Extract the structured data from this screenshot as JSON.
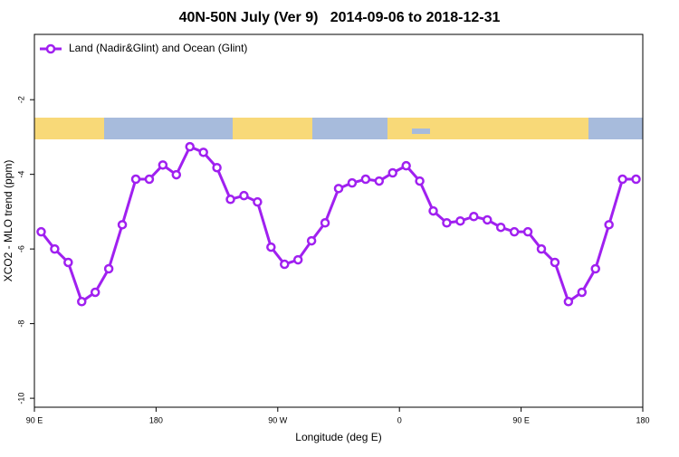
{
  "chart_data": {
    "type": "line",
    "title": "40N-50N July (Ver 9)   2014-09-06 to 2018-12-31",
    "xlabel": "Longitude (deg E)",
    "ylabel": "XCO2 - MLO trend (ppm)",
    "x": [
      95,
      105,
      115,
      125,
      135,
      145,
      155,
      165,
      175,
      185,
      195,
      205,
      215,
      225,
      235,
      245,
      255,
      265,
      275,
      285,
      295,
      305,
      315,
      325,
      335,
      345,
      355,
      365,
      375,
      385,
      395,
      405,
      415,
      425,
      435,
      445,
      455,
      465,
      475,
      485,
      495,
      505,
      515,
      525,
      535
    ],
    "series": [
      {
        "name": "Land (Nadir&Glint) and Ocean (Glint)",
        "color": "#a020f0",
        "values": [
          -5.54,
          -6.0,
          -6.36,
          -7.41,
          -7.16,
          -6.53,
          -5.35,
          -4.13,
          -4.13,
          -3.75,
          -4.01,
          -3.26,
          -3.41,
          -3.82,
          -4.67,
          -4.57,
          -4.74,
          -5.95,
          -6.41,
          -6.29,
          -5.78,
          -5.3,
          -4.38,
          -4.23,
          -4.13,
          -4.18,
          -3.96,
          -3.77,
          -4.18,
          -4.98,
          -5.3,
          -5.25,
          -5.13,
          -5.22,
          -5.42,
          -5.54,
          -5.54,
          -6.0,
          -6.36,
          -7.41,
          -7.16,
          -6.53,
          -5.35,
          -4.13,
          -4.13
        ]
      }
    ],
    "xlim": [
      90,
      540
    ],
    "xticks": [
      {
        "value": 90,
        "label": "90 E"
      },
      180,
      {
        "value": 270,
        "label": "90 W"
      },
      {
        "value": 360,
        "label": "0"
      },
      {
        "value": 450,
        "label": "90 E"
      },
      {
        "value": 540,
        "label": "180"
      }
    ],
    "ylim": [
      -10.24,
      -0.25
    ],
    "yticks": [
      -2,
      -4,
      -6,
      -8,
      -10
    ],
    "legend": "top-left"
  }
}
